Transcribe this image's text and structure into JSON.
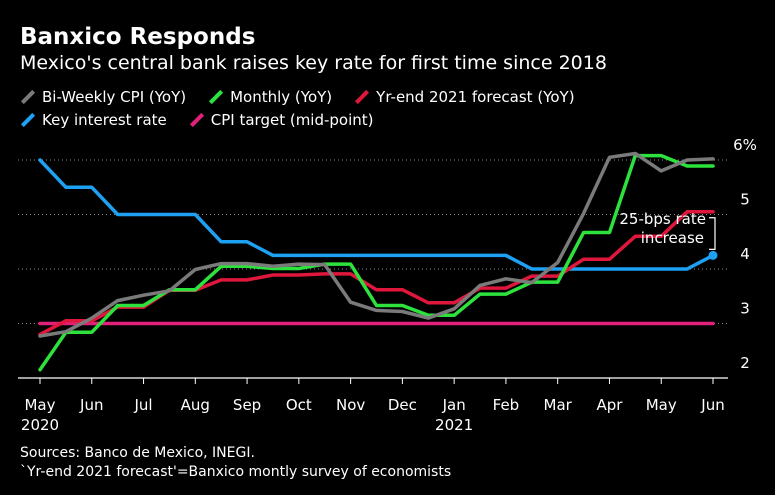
{
  "title": "Banxico Responds",
  "subtitle": "Mexico's central bank raises key rate for first time since 2018",
  "footer": {
    "sources": "Sources: Banco de Mexico, INEGI.",
    "note": "`Yr-end 2021 forecast'=Banxico montly survey of economists"
  },
  "colors": {
    "cpi": "#7a7a7a",
    "monthly": "#2ee23e",
    "forecast": "#e0173c",
    "rate": "#1ea1f2",
    "target": "#e0207a"
  },
  "chart_data": {
    "type": "line",
    "title": "Banxico Responds",
    "subtitle": "Mexico's central bank raises key rate for first time since 2018",
    "xlabel": "",
    "ylabel": "",
    "x_ticks": [
      "May",
      "Jun",
      "Jul",
      "Aug",
      "Sep",
      "Oct",
      "Nov",
      "Dec",
      "Jan",
      "Feb",
      "Mar",
      "Apr",
      "May",
      "Jun"
    ],
    "x_year_labels": [
      {
        "at": "May",
        "label": "2020"
      },
      {
        "at": "Jan",
        "label": "2021"
      }
    ],
    "y_ticks": [
      "6%",
      "5",
      "4",
      "3",
      "2"
    ],
    "ylim": [
      2,
      6
    ],
    "grid": "horizontal dotted",
    "annotation": {
      "lines": [
        "25-bps rate",
        "increase"
      ]
    },
    "series": [
      {
        "name": "Bi-Weekly CPI (YoY)",
        "color": "#7a7a7a",
        "points": [
          [
            0,
            2.77
          ],
          [
            0.5,
            2.85
          ],
          [
            1,
            3.1
          ],
          [
            1.5,
            3.42
          ],
          [
            2,
            3.52
          ],
          [
            2.5,
            3.6
          ],
          [
            3,
            3.99
          ],
          [
            3.5,
            4.1
          ],
          [
            4,
            4.1
          ],
          [
            4.5,
            4.05
          ],
          [
            5,
            4.09
          ],
          [
            5.5,
            4.08
          ],
          [
            6,
            3.39
          ],
          [
            6.5,
            3.24
          ],
          [
            7,
            3.22
          ],
          [
            7.5,
            3.1
          ],
          [
            8,
            3.27
          ],
          [
            8.5,
            3.7
          ],
          [
            9,
            3.82
          ],
          [
            9.5,
            3.75
          ],
          [
            10,
            4.12
          ],
          [
            10.5,
            5.02
          ],
          [
            11,
            6.05
          ],
          [
            11.5,
            6.12
          ],
          [
            12,
            5.8
          ],
          [
            12.5,
            6.0
          ],
          [
            13,
            6.02
          ]
        ]
      },
      {
        "name": "Monthly (YoY)",
        "color": "#2ee23e",
        "points": [
          [
            0,
            2.15
          ],
          [
            0.5,
            2.84
          ],
          [
            1,
            2.84
          ],
          [
            1.5,
            3.33
          ],
          [
            2,
            3.33
          ],
          [
            2.5,
            3.62
          ],
          [
            3,
            3.62
          ],
          [
            3.5,
            4.05
          ],
          [
            4,
            4.05
          ],
          [
            4.5,
            4.01
          ],
          [
            5,
            4.01
          ],
          [
            5.5,
            4.09
          ],
          [
            6,
            4.09
          ],
          [
            6.5,
            3.33
          ],
          [
            7,
            3.33
          ],
          [
            7.5,
            3.15
          ],
          [
            8,
            3.15
          ],
          [
            8.5,
            3.54
          ],
          [
            9,
            3.54
          ],
          [
            9.5,
            3.76
          ],
          [
            10,
            3.76
          ],
          [
            10.5,
            4.67
          ],
          [
            11,
            4.67
          ],
          [
            11.5,
            6.08
          ],
          [
            12,
            6.08
          ],
          [
            12.5,
            5.89
          ],
          [
            13,
            5.89
          ]
        ]
      },
      {
        "name": "Yr-end 2021 forecast (YoY)",
        "color": "#e0173c",
        "points": [
          [
            0,
            2.8
          ],
          [
            0.5,
            3.05
          ],
          [
            1,
            3.05
          ],
          [
            1.5,
            3.3
          ],
          [
            2,
            3.3
          ],
          [
            2.5,
            3.61
          ],
          [
            3,
            3.61
          ],
          [
            3.5,
            3.8
          ],
          [
            4,
            3.8
          ],
          [
            4.5,
            3.89
          ],
          [
            5,
            3.89
          ],
          [
            5.5,
            3.91
          ],
          [
            6,
            3.91
          ],
          [
            6.5,
            3.62
          ],
          [
            7,
            3.62
          ],
          [
            7.5,
            3.38
          ],
          [
            8,
            3.38
          ],
          [
            8.5,
            3.65
          ],
          [
            9,
            3.65
          ],
          [
            9.5,
            3.87
          ],
          [
            10,
            3.87
          ],
          [
            10.5,
            4.18
          ],
          [
            11,
            4.18
          ],
          [
            11.5,
            4.6
          ],
          [
            12,
            4.6
          ],
          [
            12.5,
            5.05
          ],
          [
            13,
            5.05
          ]
        ]
      },
      {
        "name": "Key interest rate",
        "color": "#1ea1f2",
        "points": [
          [
            0,
            6.0
          ],
          [
            0.5,
            5.5
          ],
          [
            1,
            5.5
          ],
          [
            1.5,
            5.0
          ],
          [
            2,
            5.0
          ],
          [
            2.5,
            5.0
          ],
          [
            3,
            5.0
          ],
          [
            3.5,
            4.5
          ],
          [
            4,
            4.5
          ],
          [
            4.5,
            4.25
          ],
          [
            5,
            4.25
          ],
          [
            5.5,
            4.25
          ],
          [
            6,
            4.25
          ],
          [
            6.5,
            4.25
          ],
          [
            7,
            4.25
          ],
          [
            7.5,
            4.25
          ],
          [
            8,
            4.25
          ],
          [
            8.5,
            4.25
          ],
          [
            9,
            4.25
          ],
          [
            9.5,
            4.0
          ],
          [
            10,
            4.0
          ],
          [
            10.5,
            4.0
          ],
          [
            11,
            4.0
          ],
          [
            11.5,
            4.0
          ],
          [
            12,
            4.0
          ],
          [
            12.5,
            4.0
          ],
          [
            13,
            4.25
          ]
        ]
      },
      {
        "name": "CPI target (mid-point)",
        "color": "#e0207a",
        "points": [
          [
            0,
            3.0
          ],
          [
            13,
            3.0
          ]
        ]
      }
    ]
  }
}
